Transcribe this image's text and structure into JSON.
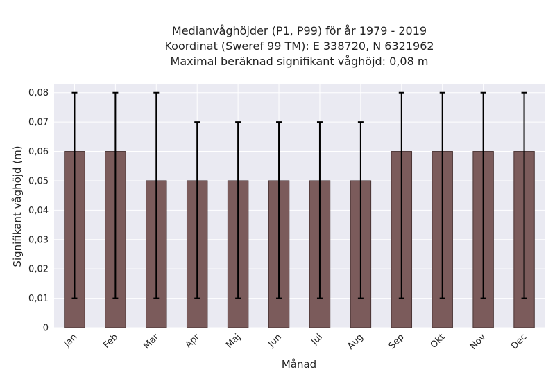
{
  "chart_data": {
    "type": "bar",
    "title_lines": [
      "Medianvåghöjder (P1, P99) för år 1979 - 2019",
      "Koordinat (Sweref 99 TM): E 338720, N 6321962",
      "Maximal beräknad signifikant våghöjd: 0,08 m"
    ],
    "xlabel": "Månad",
    "ylabel": "Signifikant våghöjd (m)",
    "categories": [
      "Jan",
      "Feb",
      "Mar",
      "Apr",
      "Maj",
      "Jun",
      "Jul",
      "Aug",
      "Sep",
      "Okt",
      "Nov",
      "Dec"
    ],
    "values": [
      0.06,
      0.06,
      0.05,
      0.05,
      0.05,
      0.05,
      0.05,
      0.05,
      0.06,
      0.06,
      0.06,
      0.06
    ],
    "error_low": [
      0.01,
      0.01,
      0.01,
      0.01,
      0.01,
      0.01,
      0.01,
      0.01,
      0.01,
      0.01,
      0.01,
      0.01
    ],
    "error_high": [
      0.08,
      0.08,
      0.08,
      0.07,
      0.07,
      0.07,
      0.07,
      0.07,
      0.08,
      0.08,
      0.08,
      0.08
    ],
    "ylim": [
      0,
      0.083
    ],
    "yticks": [
      0,
      0.01,
      0.02,
      0.03,
      0.04,
      0.05,
      0.06,
      0.07,
      0.08
    ],
    "ytick_labels": [
      "0",
      "0,01",
      "0,02",
      "0,03",
      "0,04",
      "0,05",
      "0,06",
      "0,07",
      "0,08"
    ],
    "grid": true,
    "colors": {
      "bar": "#7b5b5b",
      "bar_edge": "#4a3434",
      "error": "#000000",
      "plot_bg": "#eaeaf2",
      "grid": "#ffffff"
    }
  }
}
